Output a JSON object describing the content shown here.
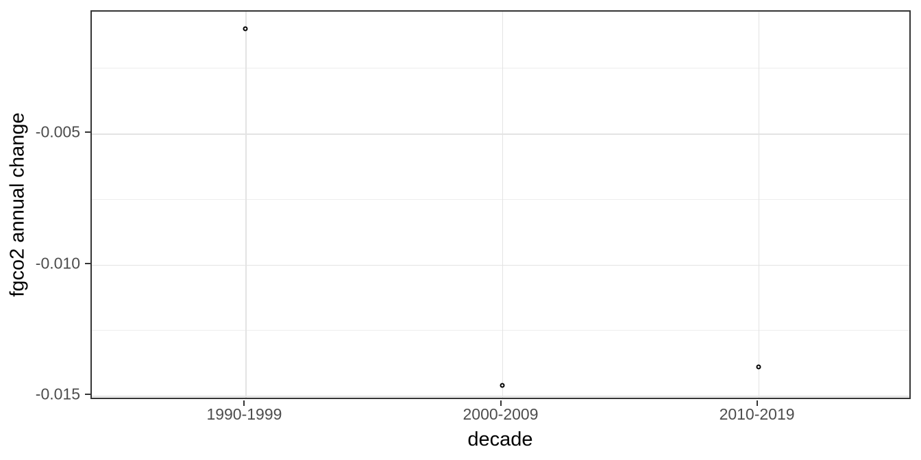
{
  "chart_data": {
    "type": "scatter",
    "title": "",
    "xlabel": "decade",
    "ylabel": "fgco2 annual change",
    "categories": [
      "1990-1999",
      "2000-2009",
      "2010-2019"
    ],
    "values": [
      -0.001,
      -0.0146,
      -0.0139
    ],
    "yticks": [
      {
        "value": -0.005,
        "label": "-0.005"
      },
      {
        "value": -0.01,
        "label": "-0.010"
      },
      {
        "value": -0.015,
        "label": "-0.015"
      }
    ],
    "ylim": [
      -0.01518,
      -0.00035
    ],
    "grid": "horizontal major+minor, vertical major at categories",
    "legend": "none",
    "point_style": "open-circle",
    "colors": {
      "point_stroke": "#000000",
      "point_fill": "#ffffff",
      "panel_border": "#333333",
      "grid_major": "#e3e3e3",
      "grid_minor": "#ededed",
      "tick_label": "#4d4d4d",
      "axis_title": "#000000",
      "background": "#ffffff"
    }
  }
}
